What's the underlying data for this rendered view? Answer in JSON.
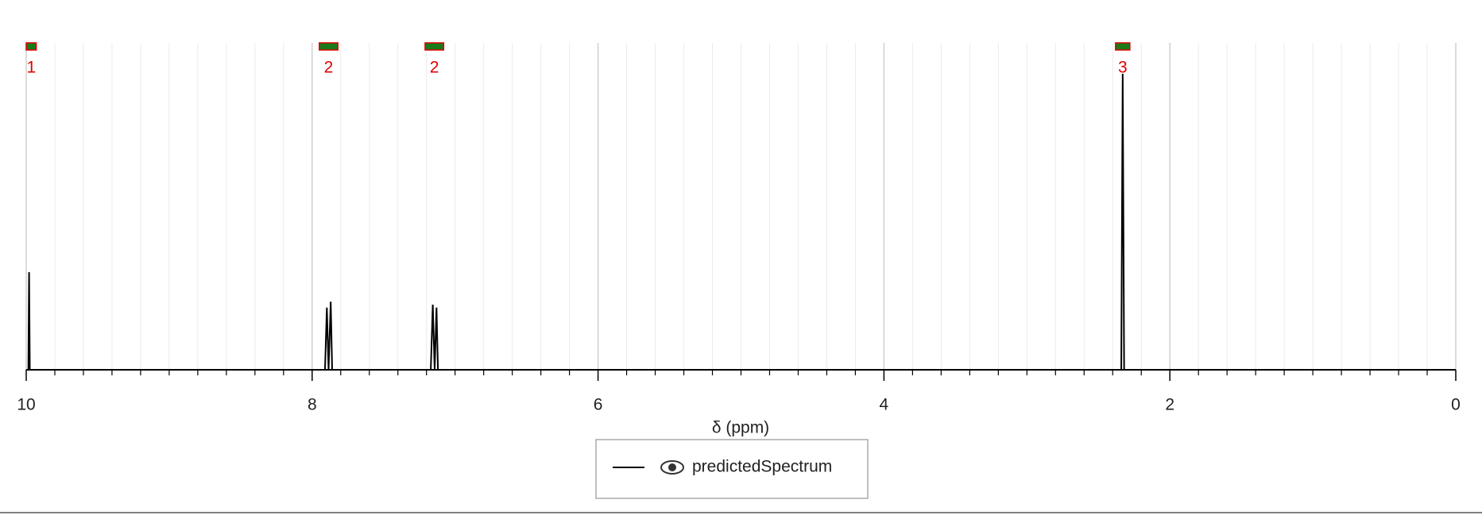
{
  "chart_data": {
    "type": "line",
    "xlabel": "δ (ppm)",
    "xlim": [
      10,
      0
    ],
    "ylim": [
      0,
      100
    ],
    "xticks": [
      10,
      8,
      6,
      4,
      2,
      0
    ],
    "xticks_minor": [
      9.8,
      9.6,
      9.4,
      9.2,
      9,
      8.8,
      8.6,
      8.4,
      8.2,
      7.8,
      7.6,
      7.4,
      7.2,
      7,
      6.8,
      6.6,
      6.4,
      6.2,
      5.8,
      5.6,
      5.4,
      5.2,
      5,
      4.8,
      4.6,
      4.4,
      4.2,
      3.8,
      3.6,
      3.4,
      3.2,
      3,
      2.8,
      2.6,
      2.4,
      2.2,
      1.8,
      1.6,
      1.4,
      1.2,
      1,
      0.8,
      0.6,
      0.4,
      0.2
    ],
    "grid": true,
    "x": [
      10,
      9.985,
      9.98,
      9.975,
      7.91,
      7.897,
      7.885,
      7.87,
      7.86,
      7.17,
      7.156,
      7.143,
      7.13,
      7.12,
      2.34,
      2.33,
      2.32,
      0
    ],
    "series": [
      {
        "name": "predictedSpectrum",
        "color": "#000000",
        "values": [
          0,
          0,
          33,
          0,
          0,
          21,
          0,
          23,
          0,
          0,
          22,
          0,
          21,
          0,
          0,
          100,
          0,
          0
        ]
      }
    ],
    "integrals": [
      {
        "from": 10,
        "to": 9.93,
        "value": 1
      },
      {
        "from": 7.95,
        "to": 7.82,
        "value": 2
      },
      {
        "from": 7.21,
        "to": 7.08,
        "value": 2
      },
      {
        "from": 2.38,
        "to": 2.28,
        "value": 3
      }
    ]
  }
}
